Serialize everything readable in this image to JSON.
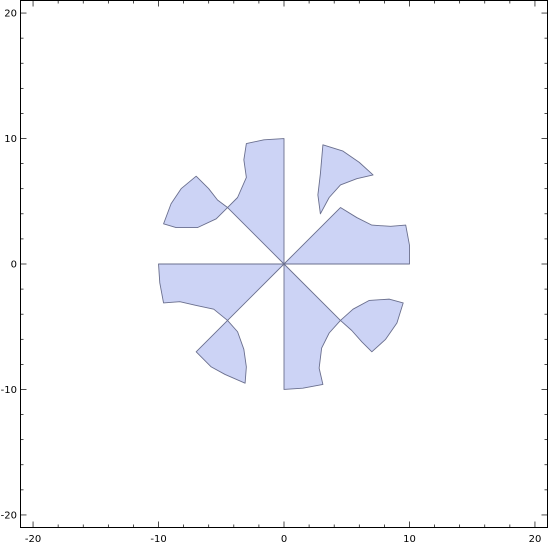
{
  "chart_data": {
    "type": "region-plot",
    "title": "",
    "xlabel": "",
    "ylabel": "",
    "xlim": [
      -21,
      21
    ],
    "ylim": [
      -21,
      21
    ],
    "x_ticks": [
      -20,
      -10,
      0,
      10,
      20
    ],
    "y_ticks": [
      -20,
      -10,
      0,
      10,
      20
    ],
    "x_tick_labels": [
      "-20",
      "-10",
      "0",
      "10",
      "20"
    ],
    "y_tick_labels": [
      "-20",
      "-10",
      "0",
      "10",
      "20"
    ],
    "grid": false,
    "fill_color": "#ccd3f5",
    "edge_color": "#6a6f8e",
    "regions": [
      {
        "name": "upper-right sector",
        "points": [
          [
            0,
            0
          ],
          [
            4.5,
            4.5
          ],
          [
            5.8,
            3.7
          ],
          [
            7.0,
            3.1
          ],
          [
            8.5,
            3.0
          ],
          [
            9.7,
            3.1
          ],
          [
            10.0,
            1.5
          ],
          [
            10.0,
            0
          ]
        ]
      },
      {
        "name": "upper-right petal",
        "points": [
          [
            3.1,
            9.5
          ],
          [
            4.7,
            9.0
          ],
          [
            6.0,
            8.1
          ],
          [
            7.1,
            7.1
          ],
          [
            5.8,
            6.8
          ],
          [
            4.5,
            6.3
          ],
          [
            3.6,
            5.3
          ],
          [
            2.9,
            4.0
          ],
          [
            2.7,
            5.5
          ],
          [
            2.9,
            7.2
          ]
        ]
      },
      {
        "name": "upper-middle sector",
        "points": [
          [
            0,
            0
          ],
          [
            0,
            10.0
          ],
          [
            -1.6,
            9.9
          ],
          [
            -3.0,
            9.6
          ],
          [
            -3.2,
            8.3
          ],
          [
            -3.0,
            6.9
          ],
          [
            -3.7,
            5.3
          ],
          [
            -4.5,
            4.5
          ]
        ]
      },
      {
        "name": "upper-left petal",
        "points": [
          [
            -7.0,
            7.0
          ],
          [
            -6.0,
            6.0
          ],
          [
            -5.3,
            5.1
          ],
          [
            -4.5,
            4.5
          ],
          [
            -5.4,
            3.6
          ],
          [
            -6.9,
            2.9
          ],
          [
            -8.6,
            2.9
          ],
          [
            -9.6,
            3.2
          ],
          [
            -9.0,
            4.8
          ],
          [
            -8.2,
            6.0
          ]
        ]
      },
      {
        "name": "lower-left sector",
        "points": [
          [
            0,
            0
          ],
          [
            -10.0,
            0
          ],
          [
            -9.9,
            -1.5
          ],
          [
            -9.6,
            -3.1
          ],
          [
            -8.3,
            -3.0
          ],
          [
            -7.0,
            -3.3
          ],
          [
            -5.6,
            -3.6
          ],
          [
            -4.5,
            -4.5
          ]
        ]
      },
      {
        "name": "lower-left petal",
        "points": [
          [
            -7.0,
            -7.0
          ],
          [
            -5.8,
            -8.2
          ],
          [
            -4.7,
            -8.8
          ],
          [
            -3.1,
            -9.5
          ],
          [
            -3.0,
            -8.2
          ],
          [
            -3.2,
            -6.8
          ],
          [
            -3.7,
            -5.4
          ],
          [
            -4.5,
            -4.5
          ]
        ]
      },
      {
        "name": "lower-middle sector",
        "points": [
          [
            0,
            0
          ],
          [
            4.5,
            -4.5
          ],
          [
            3.6,
            -5.5
          ],
          [
            3.0,
            -6.7
          ],
          [
            2.8,
            -8.3
          ],
          [
            3.1,
            -9.6
          ],
          [
            1.5,
            -9.9
          ],
          [
            0,
            -10.0
          ]
        ]
      },
      {
        "name": "lower-right petal",
        "points": [
          [
            4.5,
            -4.5
          ],
          [
            5.5,
            -3.6
          ],
          [
            6.8,
            -2.9
          ],
          [
            8.4,
            -2.8
          ],
          [
            9.5,
            -3.1
          ],
          [
            9.0,
            -4.7
          ],
          [
            8.1,
            -6.0
          ],
          [
            7.0,
            -7.0
          ],
          [
            6.2,
            -6.2
          ],
          [
            5.4,
            -5.3
          ]
        ]
      }
    ]
  }
}
